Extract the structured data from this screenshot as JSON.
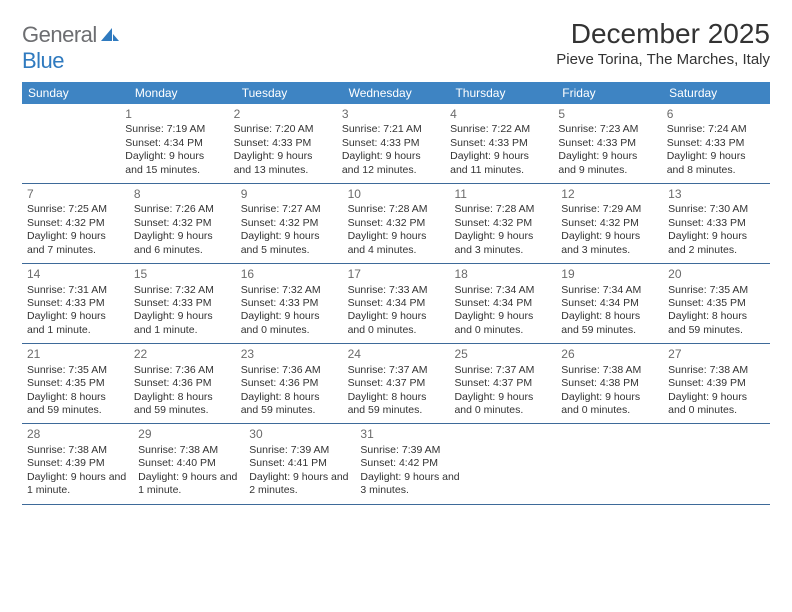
{
  "logo": {
    "general": "General",
    "blue": "Blue"
  },
  "title": "December 2025",
  "location": "Pieve Torina, The Marches, Italy",
  "colors": {
    "header_bg": "#3e84c3",
    "header_text": "#ffffff",
    "row_border": "#3e6a99",
    "daynum": "#6b6b6b",
    "body_text": "#333333",
    "logo_gray": "#6d6e71",
    "logo_blue": "#2f7abf"
  },
  "day_headers": [
    "Sunday",
    "Monday",
    "Tuesday",
    "Wednesday",
    "Thursday",
    "Friday",
    "Saturday"
  ],
  "weeks": [
    [
      null,
      {
        "n": "1",
        "sr": "7:19 AM",
        "ss": "4:34 PM",
        "dl": "9 hours and 15 minutes."
      },
      {
        "n": "2",
        "sr": "7:20 AM",
        "ss": "4:33 PM",
        "dl": "9 hours and 13 minutes."
      },
      {
        "n": "3",
        "sr": "7:21 AM",
        "ss": "4:33 PM",
        "dl": "9 hours and 12 minutes."
      },
      {
        "n": "4",
        "sr": "7:22 AM",
        "ss": "4:33 PM",
        "dl": "9 hours and 11 minutes."
      },
      {
        "n": "5",
        "sr": "7:23 AM",
        "ss": "4:33 PM",
        "dl": "9 hours and 9 minutes."
      },
      {
        "n": "6",
        "sr": "7:24 AM",
        "ss": "4:33 PM",
        "dl": "9 hours and 8 minutes."
      }
    ],
    [
      {
        "n": "7",
        "sr": "7:25 AM",
        "ss": "4:32 PM",
        "dl": "9 hours and 7 minutes."
      },
      {
        "n": "8",
        "sr": "7:26 AM",
        "ss": "4:32 PM",
        "dl": "9 hours and 6 minutes."
      },
      {
        "n": "9",
        "sr": "7:27 AM",
        "ss": "4:32 PM",
        "dl": "9 hours and 5 minutes."
      },
      {
        "n": "10",
        "sr": "7:28 AM",
        "ss": "4:32 PM",
        "dl": "9 hours and 4 minutes."
      },
      {
        "n": "11",
        "sr": "7:28 AM",
        "ss": "4:32 PM",
        "dl": "9 hours and 3 minutes."
      },
      {
        "n": "12",
        "sr": "7:29 AM",
        "ss": "4:32 PM",
        "dl": "9 hours and 3 minutes."
      },
      {
        "n": "13",
        "sr": "7:30 AM",
        "ss": "4:33 PM",
        "dl": "9 hours and 2 minutes."
      }
    ],
    [
      {
        "n": "14",
        "sr": "7:31 AM",
        "ss": "4:33 PM",
        "dl": "9 hours and 1 minute."
      },
      {
        "n": "15",
        "sr": "7:32 AM",
        "ss": "4:33 PM",
        "dl": "9 hours and 1 minute."
      },
      {
        "n": "16",
        "sr": "7:32 AM",
        "ss": "4:33 PM",
        "dl": "9 hours and 0 minutes."
      },
      {
        "n": "17",
        "sr": "7:33 AM",
        "ss": "4:34 PM",
        "dl": "9 hours and 0 minutes."
      },
      {
        "n": "18",
        "sr": "7:34 AM",
        "ss": "4:34 PM",
        "dl": "9 hours and 0 minutes."
      },
      {
        "n": "19",
        "sr": "7:34 AM",
        "ss": "4:34 PM",
        "dl": "8 hours and 59 minutes."
      },
      {
        "n": "20",
        "sr": "7:35 AM",
        "ss": "4:35 PM",
        "dl": "8 hours and 59 minutes."
      }
    ],
    [
      {
        "n": "21",
        "sr": "7:35 AM",
        "ss": "4:35 PM",
        "dl": "8 hours and 59 minutes."
      },
      {
        "n": "22",
        "sr": "7:36 AM",
        "ss": "4:36 PM",
        "dl": "8 hours and 59 minutes."
      },
      {
        "n": "23",
        "sr": "7:36 AM",
        "ss": "4:36 PM",
        "dl": "8 hours and 59 minutes."
      },
      {
        "n": "24",
        "sr": "7:37 AM",
        "ss": "4:37 PM",
        "dl": "8 hours and 59 minutes."
      },
      {
        "n": "25",
        "sr": "7:37 AM",
        "ss": "4:37 PM",
        "dl": "9 hours and 0 minutes."
      },
      {
        "n": "26",
        "sr": "7:38 AM",
        "ss": "4:38 PM",
        "dl": "9 hours and 0 minutes."
      },
      {
        "n": "27",
        "sr": "7:38 AM",
        "ss": "4:39 PM",
        "dl": "9 hours and 0 minutes."
      }
    ],
    [
      {
        "n": "28",
        "sr": "7:38 AM",
        "ss": "4:39 PM",
        "dl": "9 hours and 1 minute."
      },
      {
        "n": "29",
        "sr": "7:38 AM",
        "ss": "4:40 PM",
        "dl": "9 hours and 1 minute."
      },
      {
        "n": "30",
        "sr": "7:39 AM",
        "ss": "4:41 PM",
        "dl": "9 hours and 2 minutes."
      },
      {
        "n": "31",
        "sr": "7:39 AM",
        "ss": "4:42 PM",
        "dl": "9 hours and 3 minutes."
      },
      null,
      null,
      null
    ]
  ],
  "labels": {
    "sunrise": "Sunrise: ",
    "sunset": "Sunset: ",
    "daylight": "Daylight: "
  }
}
